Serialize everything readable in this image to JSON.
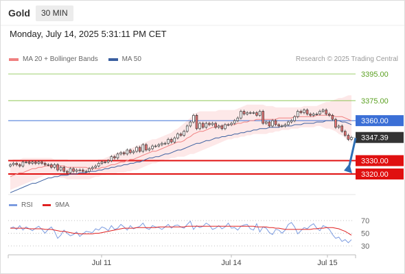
{
  "header": {
    "symbol": "Gold",
    "timeframe": "30 MIN",
    "datetime": "Monday, July 14, 2025 5:31:11 PM CET"
  },
  "legend": {
    "ma20_label": "MA 20 + Bollinger Bands",
    "ma50_label": "MA 50",
    "copyright": "Research © 2025 Trading Central"
  },
  "rsi_legend": {
    "rsi_label": "RSI",
    "ma_label": "9MA"
  },
  "colors": {
    "ma20": "#f08080",
    "ma50": "#3a5fa0",
    "band_fill": "#fde2e2",
    "up_candle": "#ffffff",
    "down_candle": "#e57373",
    "resistance": "#7cbf3c",
    "pivot": "#3b6fd6",
    "support": "#e01010",
    "price_tag": "#333333",
    "arrow": "#2f6fb5",
    "rsi": "#7b9be0",
    "rsi_ma": "#e02020"
  },
  "chart_data": [
    {
      "type": "candlestick",
      "title": "Gold",
      "xlabel": "",
      "ylabel": "",
      "x_ticks": [
        "Jul 11",
        "Jul 14",
        "Jul 15"
      ],
      "ylim": [
        3310,
        3400
      ],
      "levels": [
        {
          "value": 3395.0,
          "label": "3395.00",
          "kind": "resistance"
        },
        {
          "value": 3375.0,
          "label": "3375.00",
          "kind": "resistance"
        },
        {
          "value": 3360.0,
          "label": "3360.00",
          "kind": "pivot"
        },
        {
          "value": 3330.0,
          "label": "3330.00",
          "kind": "support"
        },
        {
          "value": 3320.0,
          "label": "3320.00",
          "kind": "support"
        }
      ],
      "last_price": {
        "value": 3347.39,
        "label": "3347.39"
      },
      "close": [
        3327,
        3328,
        3327,
        3326,
        3329,
        3329,
        3328,
        3329,
        3328,
        3329,
        3328,
        3327,
        3327,
        3325,
        3327,
        3323,
        3325,
        3322,
        3321,
        3324,
        3322,
        3323,
        3323,
        3322,
        3322,
        3324,
        3325,
        3326,
        3328,
        3329,
        3329,
        3330,
        3333,
        3332,
        3335,
        3336,
        3335,
        3338,
        3336,
        3337,
        3340,
        3337,
        3342,
        3338,
        3339,
        3341,
        3341,
        3342,
        3343,
        3343,
        3346,
        3344,
        3347,
        3350,
        3349,
        3352,
        3356,
        3359,
        3364,
        3354,
        3358,
        3355,
        3358,
        3357,
        3358,
        3355,
        3356,
        3354,
        3357,
        3357,
        3358,
        3360,
        3362,
        3367,
        3365,
        3366,
        3366,
        3366,
        3364,
        3367,
        3358,
        3359,
        3356,
        3360,
        3357,
        3356,
        3356,
        3357,
        3359,
        3360,
        3363,
        3367,
        3366,
        3368,
        3365,
        3364,
        3365,
        3365,
        3367,
        3368,
        3365,
        3364,
        3361,
        3355,
        3356,
        3352,
        3349,
        3346,
        3347.39
      ],
      "ma20": [
        3318,
        3319,
        3320,
        3321,
        3321,
        3322,
        3323,
        3324,
        3324,
        3325,
        3325,
        3326,
        3326,
        3326,
        3326,
        3326,
        3326,
        3326,
        3325,
        3325,
        3325,
        3325,
        3325,
        3325,
        3325,
        3324,
        3324,
        3324,
        3324,
        3325,
        3325,
        3326,
        3327,
        3327,
        3328,
        3329,
        3329,
        3330,
        3331,
        3331,
        3332,
        3333,
        3334,
        3335,
        3336,
        3337,
        3337,
        3338,
        3339,
        3340,
        3341,
        3342,
        3343,
        3344,
        3344,
        3345,
        3347,
        3348,
        3350,
        3351,
        3352,
        3352,
        3353,
        3354,
        3355,
        3355,
        3356,
        3356,
        3357,
        3357,
        3357,
        3357,
        3358,
        3358,
        3359,
        3359,
        3360,
        3360,
        3361,
        3361,
        3361,
        3361,
        3361,
        3361,
        3361,
        3362,
        3362,
        3362,
        3362,
        3362,
        3363,
        3363,
        3363,
        3363,
        3363,
        3363,
        3363,
        3364,
        3364,
        3364,
        3364,
        3364,
        3364,
        3363,
        3363,
        3363,
        3362,
        3361,
        3360
      ],
      "band_upper": [
        3330,
        3331,
        3331,
        3331,
        3332,
        3332,
        3332,
        3332,
        3332,
        3332,
        3332,
        3332,
        3332,
        3332,
        3331,
        3331,
        3331,
        3331,
        3331,
        3330,
        3330,
        3330,
        3330,
        3330,
        3330,
        3330,
        3330,
        3330,
        3331,
        3331,
        3332,
        3333,
        3334,
        3335,
        3336,
        3337,
        3337,
        3338,
        3339,
        3340,
        3341,
        3342,
        3343,
        3344,
        3345,
        3346,
        3346,
        3347,
        3348,
        3349,
        3350,
        3351,
        3353,
        3354,
        3356,
        3358,
        3360,
        3362,
        3365,
        3366,
        3367,
        3367,
        3367,
        3367,
        3367,
        3367,
        3368,
        3368,
        3368,
        3368,
        3368,
        3368,
        3369,
        3370,
        3371,
        3372,
        3372,
        3372,
        3372,
        3372,
        3372,
        3371,
        3371,
        3371,
        3370,
        3370,
        3370,
        3370,
        3370,
        3370,
        3370,
        3370,
        3370,
        3371,
        3371,
        3371,
        3371,
        3371,
        3372,
        3373,
        3374,
        3374,
        3375,
        3376,
        3377,
        3377,
        3378,
        3379,
        3379
      ],
      "band_lower": [
        3308,
        3309,
        3310,
        3311,
        3312,
        3313,
        3314,
        3315,
        3316,
        3317,
        3318,
        3319,
        3319,
        3319,
        3318,
        3318,
        3317,
        3317,
        3316,
        3316,
        3316,
        3316,
        3316,
        3316,
        3316,
        3316,
        3317,
        3318,
        3318,
        3319,
        3319,
        3320,
        3320,
        3320,
        3321,
        3321,
        3321,
        3322,
        3322,
        3323,
        3323,
        3324,
        3325,
        3326,
        3327,
        3328,
        3328,
        3329,
        3330,
        3331,
        3331,
        3332,
        3332,
        3333,
        3333,
        3333,
        3334,
        3335,
        3335,
        3336,
        3337,
        3338,
        3339,
        3340,
        3341,
        3342,
        3343,
        3344,
        3345,
        3346,
        3346,
        3347,
        3347,
        3348,
        3348,
        3349,
        3349,
        3350,
        3350,
        3350,
        3350,
        3350,
        3351,
        3351,
        3352,
        3352,
        3353,
        3353,
        3353,
        3354,
        3354,
        3354,
        3355,
        3355,
        3355,
        3355,
        3355,
        3356,
        3356,
        3355,
        3354,
        3354,
        3353,
        3352,
        3350,
        3349,
        3347,
        3345,
        3343
      ],
      "ma50": [
        3306,
        3307,
        3308,
        3309,
        3310,
        3311,
        3312,
        3313,
        3313,
        3314,
        3315,
        3316,
        3317,
        3317,
        3318,
        3318,
        3319,
        3319,
        3319,
        3320,
        3320,
        3320,
        3321,
        3321,
        3321,
        3322,
        3322,
        3322,
        3323,
        3323,
        3324,
        3324,
        3325,
        3325,
        3326,
        3326,
        3327,
        3327,
        3328,
        3328,
        3329,
        3329,
        3330,
        3331,
        3332,
        3332,
        3333,
        3333,
        3334,
        3335,
        3335,
        3336,
        3337,
        3338,
        3338,
        3339,
        3340,
        3341,
        3342,
        3343,
        3343,
        3344,
        3345,
        3345,
        3346,
        3347,
        3347,
        3348,
        3348,
        3349,
        3349,
        3350,
        3350,
        3351,
        3351,
        3352,
        3352,
        3353,
        3353,
        3354,
        3354,
        3354,
        3355,
        3355,
        3355,
        3355,
        3356,
        3356,
        3356,
        3356,
        3357,
        3357,
        3357,
        3358,
        3358,
        3358,
        3358,
        3359,
        3359,
        3359,
        3360,
        3360,
        3360,
        3360,
        3360,
        3359,
        3359,
        3358,
        3357
      ]
    },
    {
      "type": "line",
      "title": "RSI",
      "ylim": [
        25,
        80
      ],
      "y_ticks": [
        70,
        50,
        30
      ],
      "series": [
        {
          "name": "RSI",
          "values": [
            58,
            60,
            56,
            62,
            55,
            60,
            57,
            54,
            58,
            61,
            56,
            50,
            56,
            60,
            53,
            42,
            47,
            55,
            50,
            46,
            48,
            52,
            45,
            49,
            53,
            52,
            51,
            57,
            55,
            60,
            58,
            54,
            62,
            56,
            58,
            64,
            60,
            55,
            62,
            57,
            59,
            61,
            66,
            58,
            56,
            62,
            60,
            59,
            56,
            60,
            64,
            58,
            62,
            63,
            60,
            58,
            64,
            69,
            56,
            62,
            59,
            61,
            66,
            63,
            56,
            58,
            62,
            57,
            60,
            66,
            58,
            59,
            55,
            61,
            63,
            64,
            57,
            55,
            65,
            52,
            60,
            58,
            51,
            48,
            56,
            55,
            50,
            55,
            64,
            67,
            60,
            49,
            54,
            59,
            57,
            62,
            65,
            58,
            54,
            62,
            60,
            56,
            48,
            42,
            44,
            37,
            40,
            35,
            40
          ]
        },
        {
          "name": "9MA",
          "values": [
            58,
            58,
            58,
            58,
            58,
            58,
            57,
            57,
            57,
            57,
            57,
            56,
            56,
            56,
            55,
            54,
            53,
            53,
            52,
            51,
            50,
            50,
            49,
            49,
            49,
            49,
            49,
            50,
            50,
            51,
            52,
            53,
            54,
            55,
            56,
            57,
            58,
            58,
            58,
            58,
            59,
            59,
            59,
            59,
            59,
            59,
            59,
            60,
            60,
            60,
            60,
            60,
            60,
            60,
            60,
            60,
            61,
            61,
            61,
            61,
            61,
            61,
            61,
            61,
            61,
            61,
            61,
            61,
            61,
            61,
            61,
            61,
            61,
            61,
            61,
            61,
            61,
            61,
            60,
            60,
            60,
            60,
            59,
            59,
            58,
            58,
            57,
            56,
            56,
            56,
            56,
            56,
            56,
            56,
            56,
            56,
            57,
            57,
            58,
            58,
            59,
            59,
            59,
            58,
            57,
            55,
            53,
            50,
            47
          ]
        }
      ]
    }
  ]
}
